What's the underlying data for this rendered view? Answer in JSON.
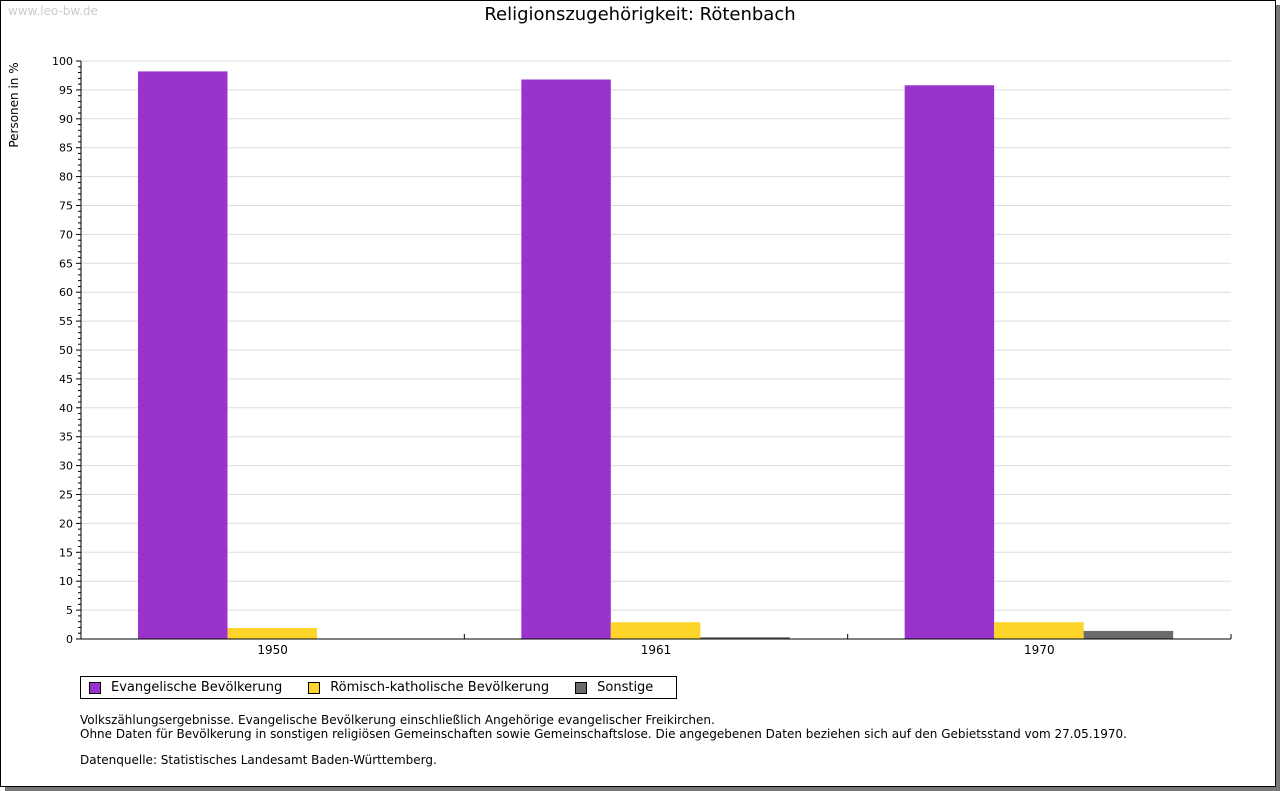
{
  "watermark": "www.leo-bw.de",
  "chart_data": {
    "type": "bar",
    "title": "Religionszugehörigkeit: Rötenbach",
    "ylabel": "Personen in %",
    "xlabel": "",
    "ylim": [
      0,
      100
    ],
    "yticks": [
      0,
      5,
      10,
      15,
      20,
      25,
      30,
      35,
      40,
      45,
      50,
      55,
      60,
      65,
      70,
      75,
      80,
      85,
      90,
      95,
      100
    ],
    "categories": [
      "1950",
      "1961",
      "1970"
    ],
    "series": [
      {
        "name": "Evangelische Bevölkerung",
        "color": "#9933cc",
        "values": [
          98.2,
          96.8,
          95.8
        ]
      },
      {
        "name": "Römisch-katholische Bevölkerung",
        "color": "#fcd42a",
        "values": [
          1.9,
          2.9,
          2.9
        ]
      },
      {
        "name": "Sonstige",
        "color": "#6b6b6b",
        "values": [
          0,
          0.3,
          1.4
        ]
      }
    ],
    "grid": true,
    "legend": "bottom-left"
  },
  "notes": [
    "Volkszählungsergebnisse. Evangelische Bevölkerung einschließlich Angehörige evangelischer Freikirchen.",
    "Ohne Daten für Bevölkerung in sonstigen religiösen Gemeinschaften sowie Gemeinschaftslose. Die angegebenen Daten beziehen sich auf den Gebietsstand vom 27.05.1970."
  ],
  "source": "Datenquelle: Statistisches Landesamt Baden-Württemberg."
}
